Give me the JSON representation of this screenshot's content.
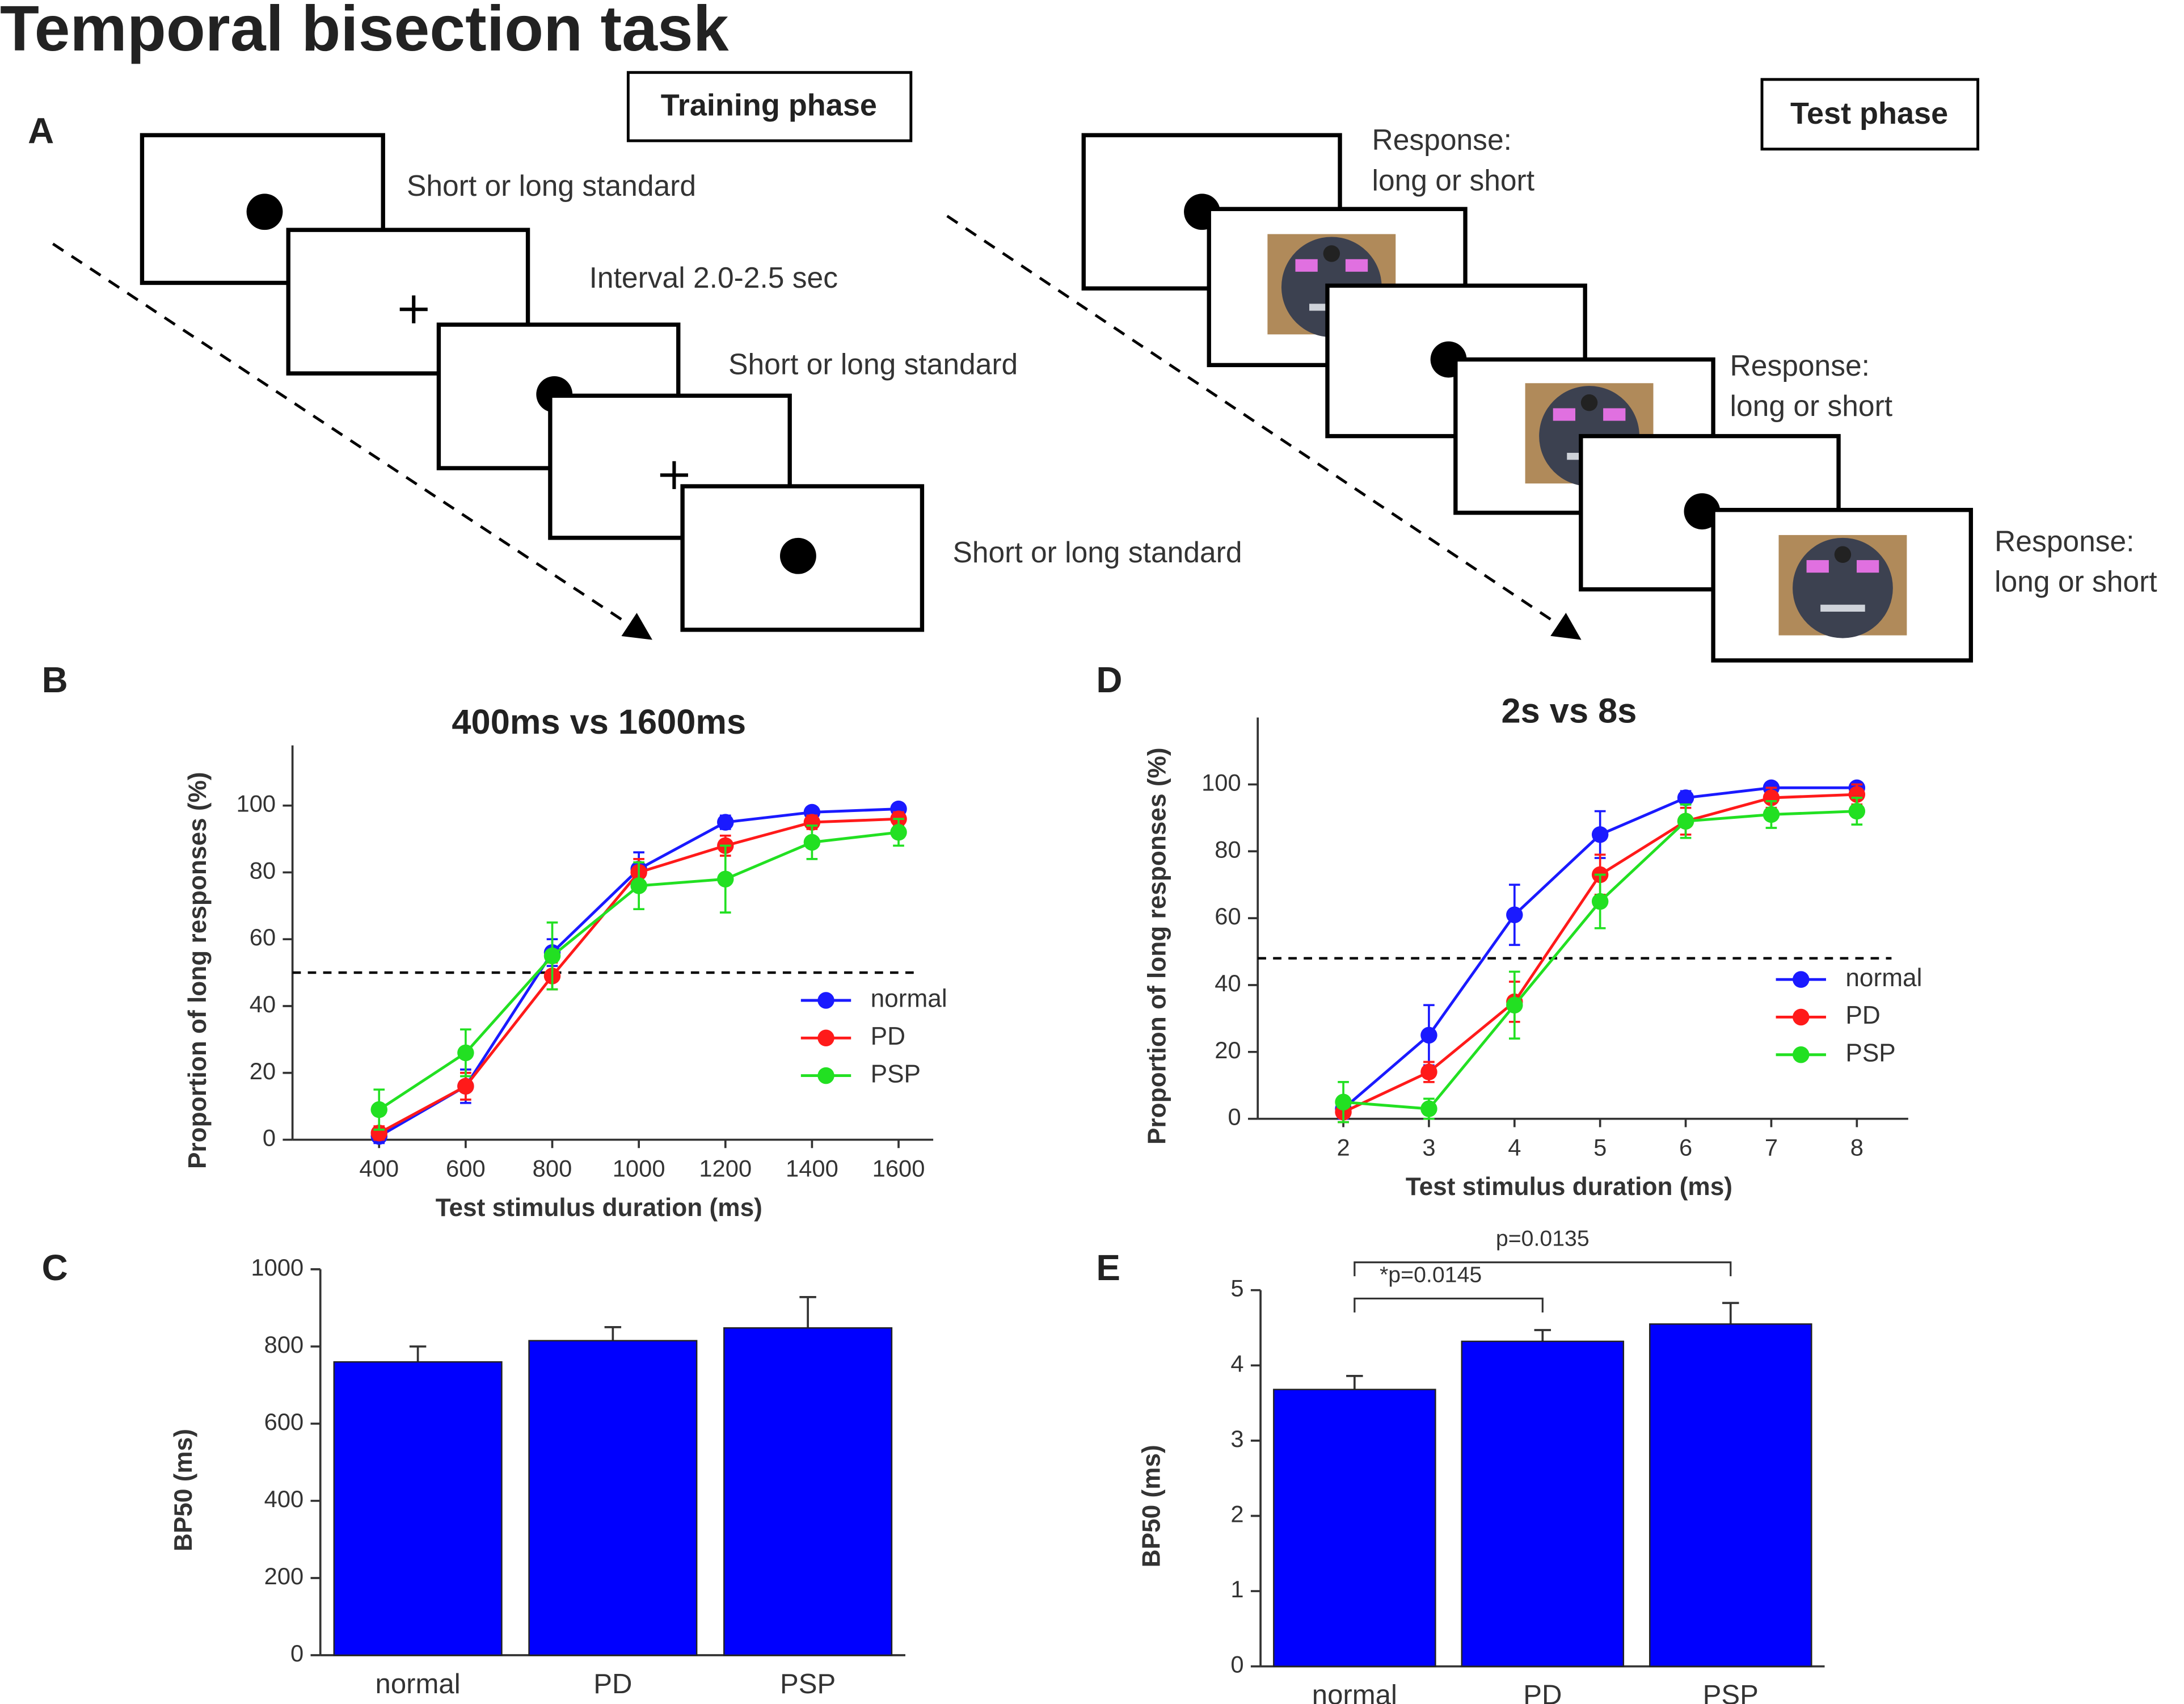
{
  "title": "Temporal bisection task",
  "panel_a": {
    "label": "A",
    "training": {
      "heading": "Training phase",
      "captions": [
        "Short or long standard",
        "Interval 2.0-2.5 sec",
        "Short or long standard",
        "Short or long standard"
      ]
    },
    "test": {
      "heading": "Test phase",
      "captions": [
        [
          "Response:",
          "long or short"
        ],
        [
          "Response:",
          "long or short"
        ],
        [
          "Response:",
          "long or short"
        ]
      ]
    }
  },
  "chart_data": [
    {
      "type": "line",
      "panel": "B",
      "title": "400ms vs 1600ms",
      "y_label": "Proportion of long responses  (%)",
      "x_label": "Test stimulus duration (ms)",
      "x": [
        400,
        600,
        800,
        1000,
        1200,
        1400,
        1600
      ],
      "xlim": [
        200,
        1680
      ],
      "xticks": [
        400,
        600,
        800,
        1000,
        1200,
        1400,
        1600
      ],
      "ylim": [
        0,
        118
      ],
      "yticks": [
        0,
        20,
        40,
        60,
        80,
        100
      ],
      "reference_line": 50,
      "legend": "lower right",
      "grid": false,
      "series": [
        {
          "name": "normal",
          "color": "#1a1aff",
          "values": [
            1,
            16,
            56,
            81,
            95,
            98,
            99
          ],
          "errors": [
            2,
            5,
            4,
            5,
            2,
            1,
            1
          ]
        },
        {
          "name": "PD",
          "color": "#ff1a1a",
          "values": [
            2,
            16,
            49,
            80,
            88,
            95,
            96
          ],
          "errors": [
            2,
            4,
            4,
            4,
            3,
            2,
            2
          ]
        },
        {
          "name": "PSP",
          "color": "#22e022",
          "values": [
            9,
            26,
            55,
            76,
            78,
            89,
            92
          ],
          "errors": [
            6,
            7,
            10,
            7,
            10,
            5,
            4
          ]
        }
      ]
    },
    {
      "type": "bar",
      "panel": "C",
      "y_label": "BP50 (ms)",
      "categories": [
        "normal",
        "PD",
        "PSP"
      ],
      "values": [
        760,
        815,
        848
      ],
      "errors": [
        40,
        35,
        80
      ],
      "color": "#0000ff",
      "ylim": [
        0,
        1000
      ],
      "yticks": [
        0,
        200,
        400,
        600,
        800,
        1000
      ],
      "grid": false
    },
    {
      "type": "line",
      "panel": "D",
      "title": "2s vs 8s",
      "y_label": "Proportion of long responses  (%)",
      "x_label": "Test stimulus duration (ms)",
      "x": [
        2,
        3,
        4,
        5,
        6,
        7,
        8
      ],
      "xlim": [
        1,
        8.6
      ],
      "xticks": [
        2,
        3,
        4,
        5,
        6,
        7,
        8
      ],
      "ylim": [
        0,
        120
      ],
      "yticks": [
        0,
        20,
        40,
        60,
        80,
        100
      ],
      "reference_line": 48,
      "legend": "lower right",
      "grid": false,
      "series": [
        {
          "name": "normal",
          "color": "#1a1aff",
          "values": [
            3,
            25,
            61,
            85,
            96,
            99,
            99
          ],
          "errors": [
            3,
            9,
            9,
            7,
            2,
            1,
            1
          ]
        },
        {
          "name": "PD",
          "color": "#ff1a1a",
          "values": [
            2,
            14,
            35,
            73,
            89,
            96,
            97
          ],
          "errors": [
            3,
            3,
            6,
            6,
            4,
            3,
            3
          ]
        },
        {
          "name": "PSP",
          "color": "#22e022",
          "values": [
            5,
            3,
            34,
            65,
            89,
            91,
            92
          ],
          "errors": [
            6,
            3,
            10,
            8,
            5,
            4,
            4
          ]
        }
      ]
    },
    {
      "type": "bar",
      "panel": "E",
      "y_label": "BP50 (ms)",
      "categories": [
        "normal",
        "PD",
        "PSP"
      ],
      "values": [
        3.68,
        4.32,
        4.55
      ],
      "errors": [
        0.18,
        0.15,
        0.28
      ],
      "color": "#0000ff",
      "ylim": [
        0,
        5
      ],
      "yticks": [
        0,
        1,
        2,
        3,
        4,
        5
      ],
      "grid": false,
      "annotations": [
        "*p=0.0145",
        "p=0.0135"
      ]
    }
  ]
}
